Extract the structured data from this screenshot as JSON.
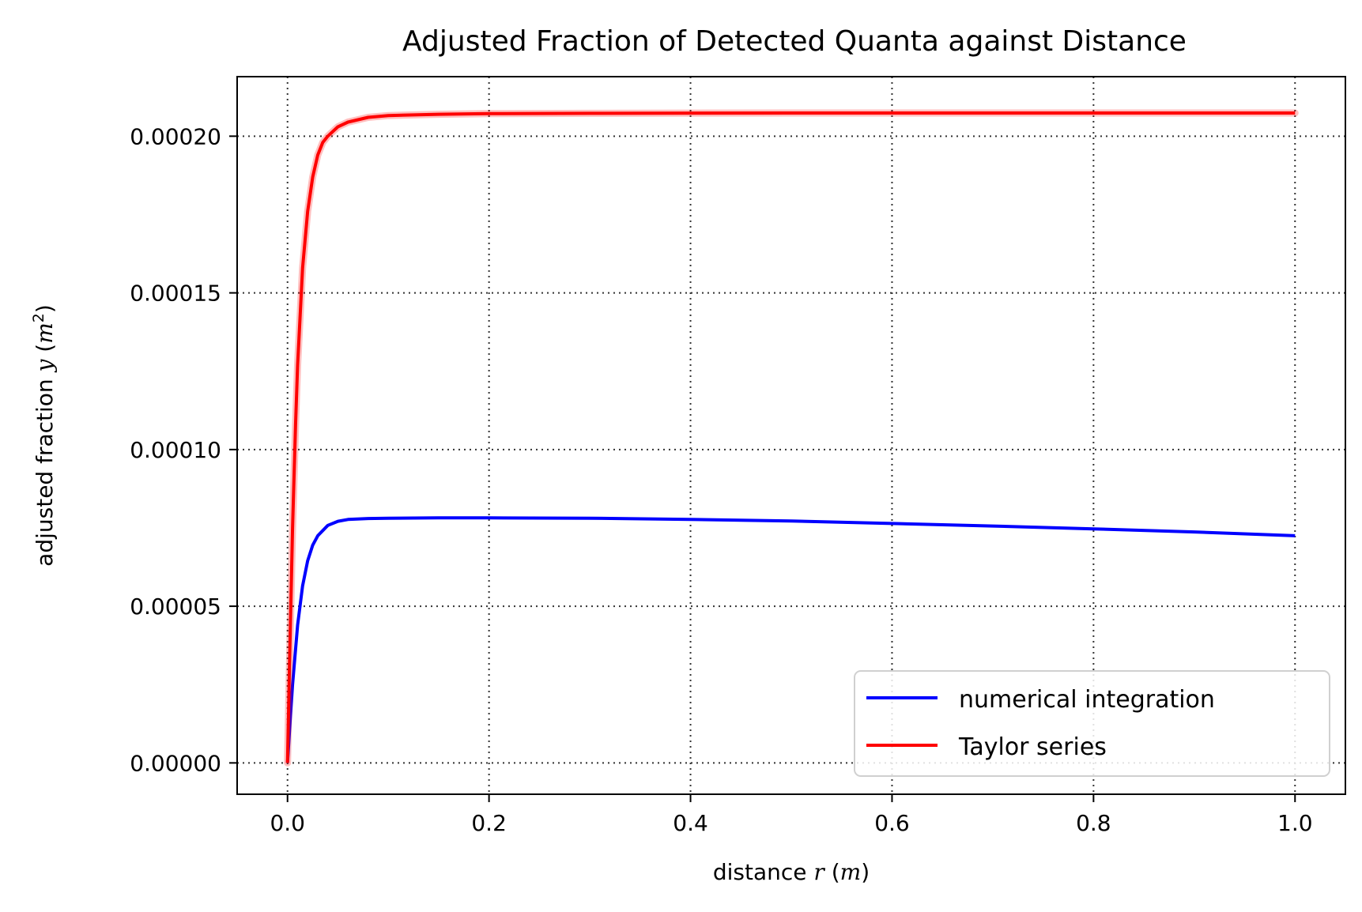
{
  "chart_data": {
    "type": "line",
    "title": "Adjusted Fraction of Detected Quanta against Distance",
    "xlabel": {
      "prefix": "distance ",
      "var": "r",
      "open": " (",
      "unit": "m",
      "close": ")"
    },
    "ylabel": {
      "prefix": "adjusted fraction ",
      "var": "y",
      "open": " (",
      "unit": "m",
      "sup": "2",
      "close": ")"
    },
    "xlim": [
      -0.05,
      1.05
    ],
    "ylim": [
      -1e-05,
      0.000219
    ],
    "xticks": [
      0.0,
      0.2,
      0.4,
      0.6,
      0.8,
      1.0
    ],
    "xtick_labels": [
      "0.0",
      "0.2",
      "0.4",
      "0.6",
      "0.8",
      "1.0"
    ],
    "yticks": [
      0.0,
      5e-05,
      0.0001,
      0.00015,
      0.0002
    ],
    "ytick_labels": [
      "0.00000",
      "0.00005",
      "0.00010",
      "0.00015",
      "0.00020"
    ],
    "grid": true,
    "legend_position": "lower-right",
    "series": [
      {
        "name": "numerical integration",
        "color": "#0000ff",
        "x": [
          0.0,
          0.002,
          0.005,
          0.01,
          0.015,
          0.02,
          0.025,
          0.03,
          0.04,
          0.05,
          0.06,
          0.08,
          0.1,
          0.15,
          0.2,
          0.3,
          0.4,
          0.5,
          0.6,
          0.7,
          0.8,
          0.9,
          1.0
        ],
        "y": [
          0.0,
          1.05e-05,
          2.5e-05,
          4.4e-05,
          5.65e-05,
          6.45e-05,
          6.95e-05,
          7.25e-05,
          7.58e-05,
          7.71e-05,
          7.77e-05,
          7.8e-05,
          7.81e-05,
          7.82e-05,
          7.82e-05,
          7.81e-05,
          7.77e-05,
          7.72e-05,
          7.64e-05,
          7.56e-05,
          7.47e-05,
          7.37e-05,
          7.25e-05
        ]
      },
      {
        "name": "Taylor series",
        "color": "#ff0000",
        "x": [
          0.0,
          0.002,
          0.005,
          0.008,
          0.01,
          0.015,
          0.02,
          0.025,
          0.03,
          0.035,
          0.04,
          0.05,
          0.06,
          0.08,
          0.1,
          0.15,
          0.2,
          0.3,
          0.5,
          0.7,
          1.0
        ],
        "y": [
          0.0,
          3.2e-05,
          7.5e-05,
          0.000108,
          0.000127,
          0.000158,
          0.000176,
          0.000187,
          0.000194,
          0.000198,
          0.0002,
          0.000203,
          0.0002045,
          0.000206,
          0.0002066,
          0.000207,
          0.0002072,
          0.0002073,
          0.0002074,
          0.0002074,
          0.0002074
        ]
      }
    ]
  }
}
